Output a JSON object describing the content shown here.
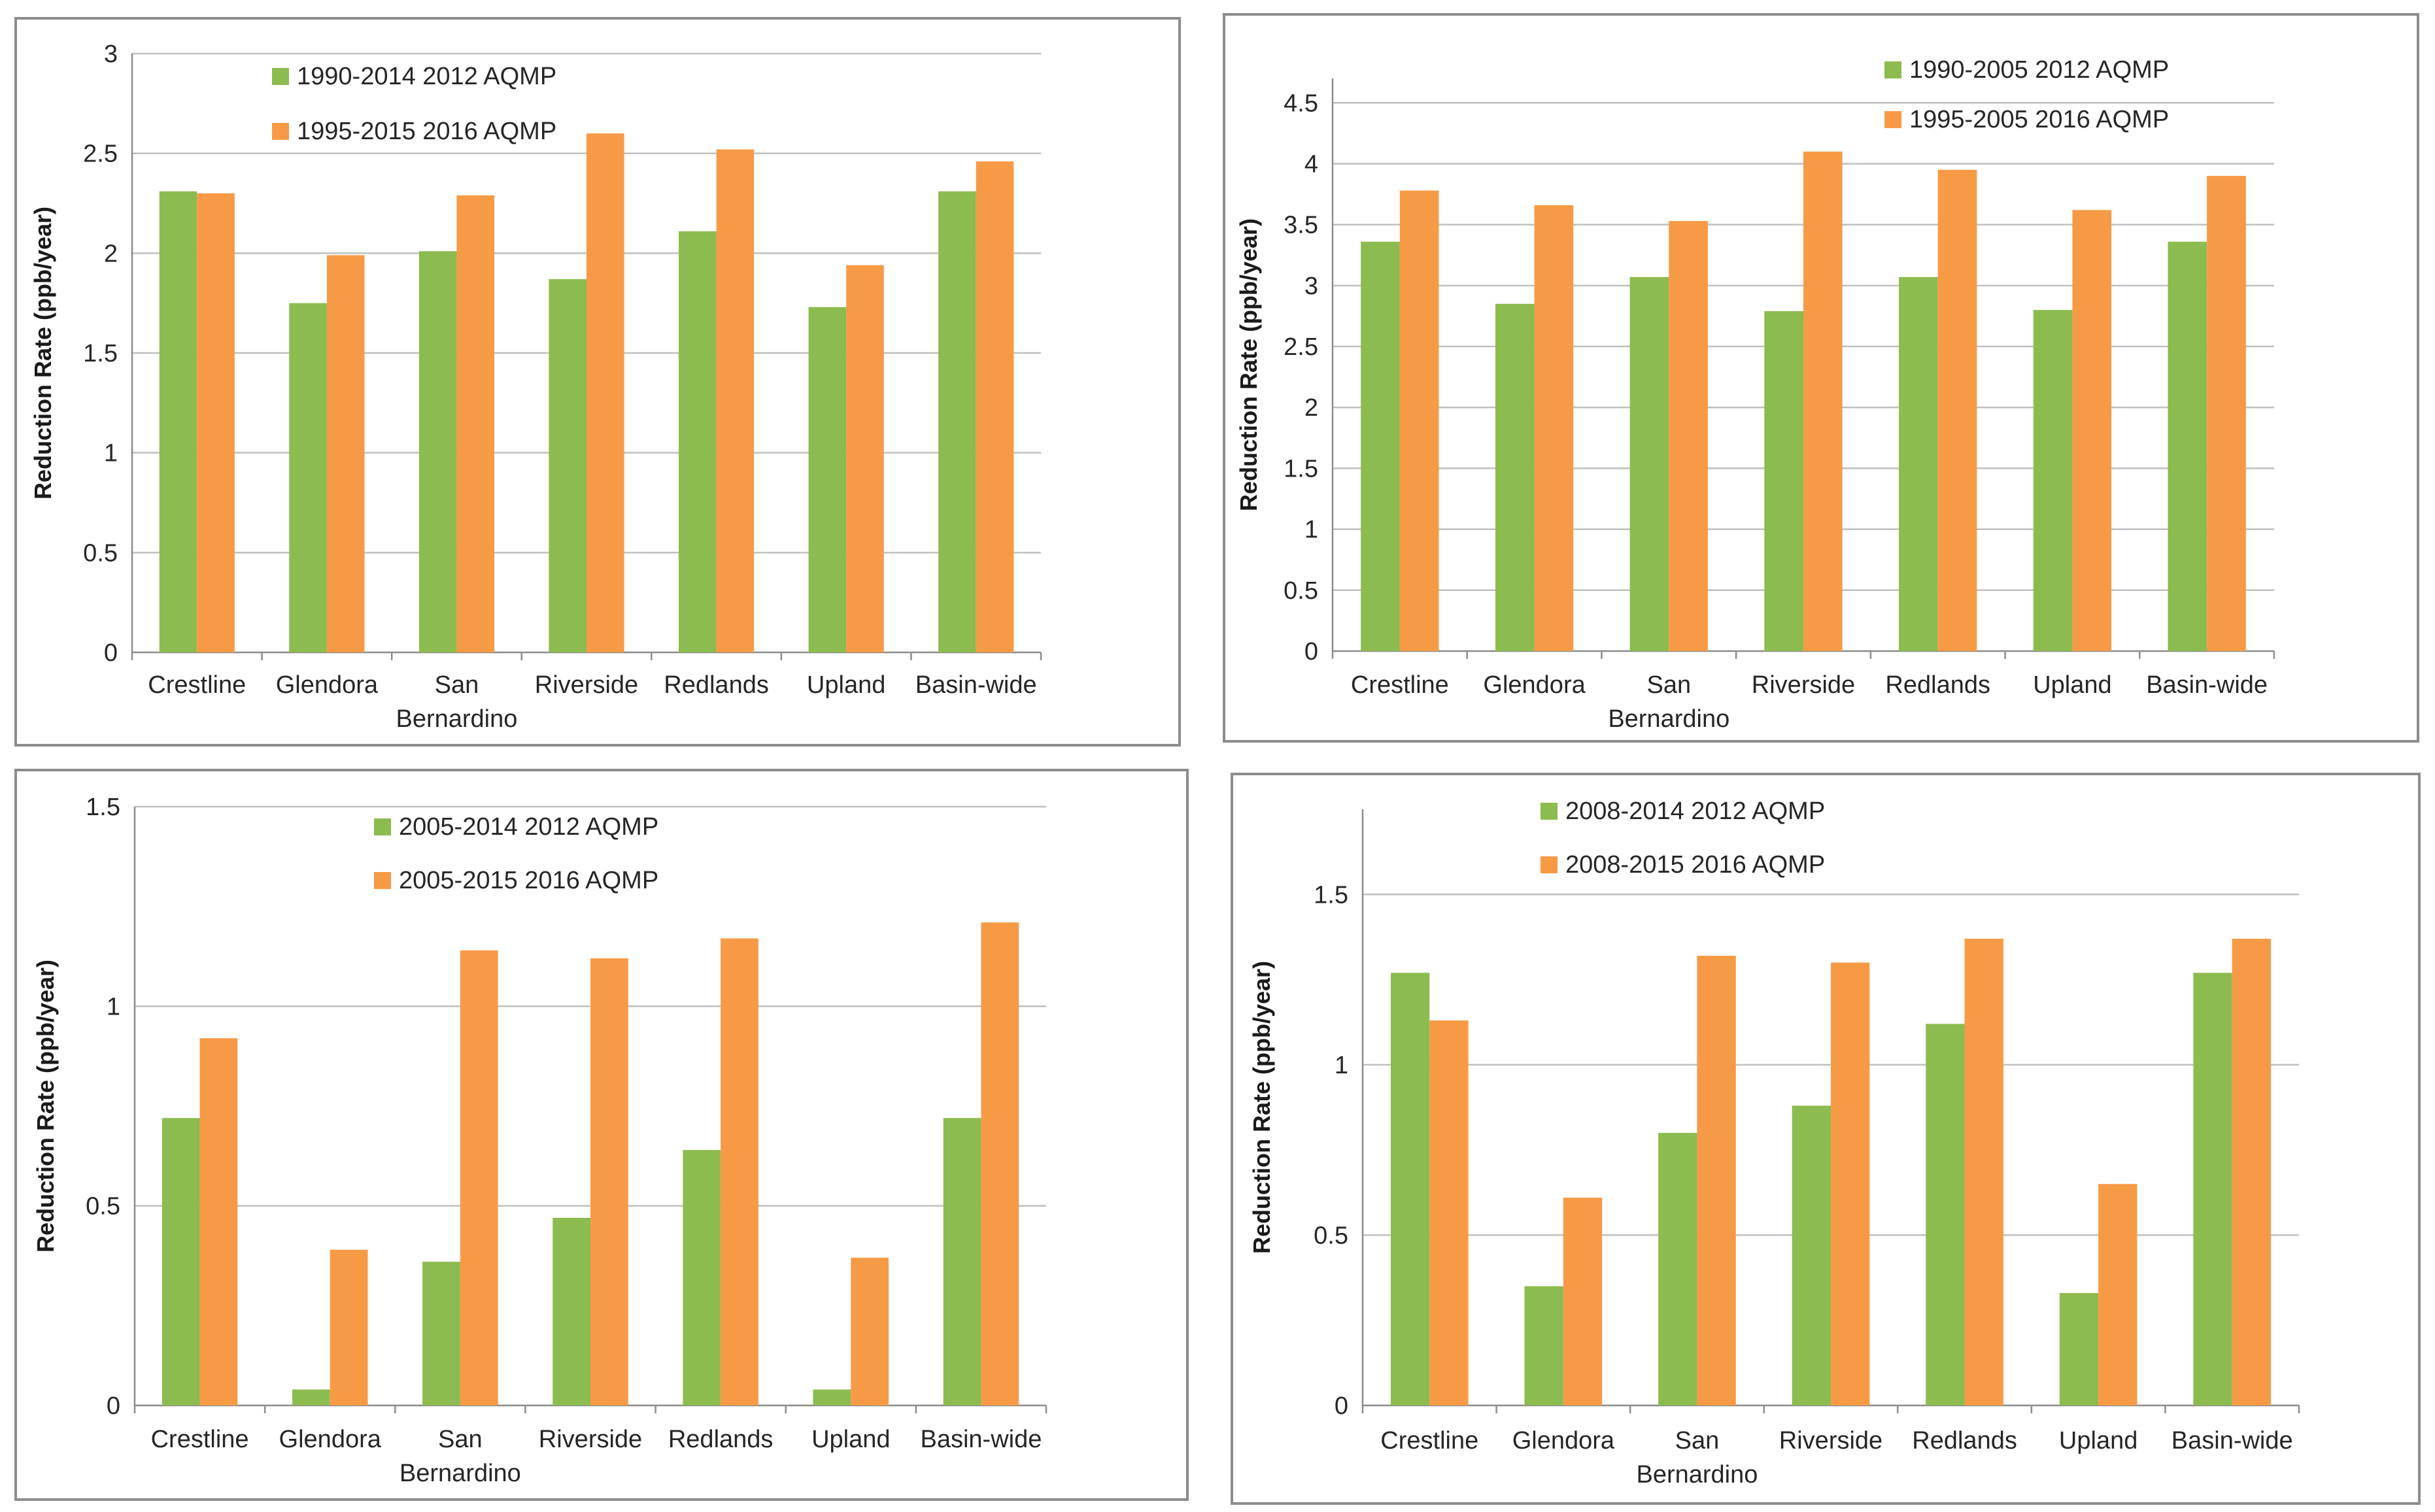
{
  "colors": {
    "series_2012": "#8cbb4f",
    "series_2016": "#f79a46",
    "gridline": "#bfbfbf",
    "axis": "#8c8c8c"
  },
  "chart_data": [
    {
      "type": "bar",
      "ylabel": "Reduction Rate (ppb/year)",
      "ylim": [
        0,
        3
      ],
      "yticks": [
        "0",
        "0.5",
        "1",
        "1.5",
        "2",
        "2.5",
        "3"
      ],
      "yticks_values": [
        0,
        0.5,
        1,
        1.5,
        2,
        2.5,
        3
      ],
      "categories": [
        "Crestline",
        "Glendora",
        "San Bernardino",
        "Riverside",
        "Redlands",
        "Upland",
        "Basin-wide"
      ],
      "category_lines": [
        [
          "Crestline"
        ],
        [
          "Glendora"
        ],
        [
          "San",
          "Bernardino"
        ],
        [
          "Riverside"
        ],
        [
          "Redlands"
        ],
        [
          "Upland"
        ],
        [
          "Basin-wide"
        ]
      ],
      "series": [
        {
          "name": "1990-2014 2012 AQMP",
          "values": [
            2.31,
            1.75,
            2.01,
            1.87,
            2.11,
            1.73,
            2.31
          ]
        },
        {
          "name": "1995-2015 2016 AQMP",
          "values": [
            2.3,
            1.99,
            2.29,
            2.6,
            2.52,
            1.94,
            2.46
          ]
        }
      ]
    },
    {
      "type": "bar",
      "ylabel": "Reduction Rate (ppb/year)",
      "ylim": [
        0,
        4.7
      ],
      "yticks": [
        "0",
        "0.5",
        "1",
        "1.5",
        "2",
        "2.5",
        "3",
        "3.5",
        "4",
        "4.5"
      ],
      "yticks_values": [
        0,
        0.5,
        1,
        1.5,
        2,
        2.5,
        3,
        3.5,
        4,
        4.5
      ],
      "categories": [
        "Crestline",
        "Glendora",
        "San Bernardino",
        "Riverside",
        "Redlands",
        "Upland",
        "Basin-wide"
      ],
      "category_lines": [
        [
          "Crestline"
        ],
        [
          "Glendora"
        ],
        [
          "San",
          "Bernardino"
        ],
        [
          "Riverside"
        ],
        [
          "Redlands"
        ],
        [
          "Upland"
        ],
        [
          "Basin-wide"
        ]
      ],
      "series": [
        {
          "name": "1990-2005 2012 AQMP",
          "values": [
            3.36,
            2.85,
            3.07,
            2.79,
            3.07,
            2.8,
            3.36
          ]
        },
        {
          "name": "1995-2005 2016 AQMP",
          "values": [
            3.78,
            3.66,
            3.53,
            4.1,
            3.95,
            3.62,
            3.9
          ]
        }
      ]
    },
    {
      "type": "bar",
      "ylabel": "Reduction Rate (ppb/year)",
      "ylim": [
        0,
        1.5
      ],
      "yticks": [
        "0",
        "0.5",
        "1",
        "1.5"
      ],
      "yticks_values": [
        0,
        0.5,
        1,
        1.5
      ],
      "categories": [
        "Crestline",
        "Glendora",
        "San Bernardino",
        "Riverside",
        "Redlands",
        "Upland",
        "Basin-wide"
      ],
      "category_lines": [
        [
          "Crestline"
        ],
        [
          "Glendora"
        ],
        [
          "San",
          "Bernardino"
        ],
        [
          "Riverside"
        ],
        [
          "Redlands"
        ],
        [
          "Upland"
        ],
        [
          "Basin-wide"
        ]
      ],
      "series": [
        {
          "name": "2005-2014 2012 AQMP",
          "values": [
            0.72,
            0.04,
            0.36,
            0.47,
            0.64,
            0.04,
            0.72
          ]
        },
        {
          "name": "2005-2015 2016 AQMP",
          "values": [
            0.92,
            0.39,
            1.14,
            1.12,
            1.17,
            0.37,
            1.21
          ]
        }
      ]
    },
    {
      "type": "bar",
      "ylabel": "Reduction Rate (ppb/year)",
      "ylim": [
        0,
        1.75
      ],
      "yticks": [
        "0",
        "0.5",
        "1",
        "1.5"
      ],
      "yticks_values": [
        0,
        0.5,
        1,
        1.5
      ],
      "categories": [
        "Crestline",
        "Glendora",
        "San Bernardino",
        "Riverside",
        "Redlands",
        "Upland",
        "Basin-wide"
      ],
      "category_lines": [
        [
          "Crestline"
        ],
        [
          "Glendora"
        ],
        [
          "San",
          "Bernardino"
        ],
        [
          "Riverside"
        ],
        [
          "Redlands"
        ],
        [
          "Upland"
        ],
        [
          "Basin-wide"
        ]
      ],
      "series": [
        {
          "name": "2008-2014 2012 AQMP",
          "values": [
            1.27,
            0.35,
            0.8,
            0.88,
            1.12,
            0.33,
            1.27
          ]
        },
        {
          "name": "2008-2015 2016 AQMP",
          "values": [
            1.13,
            0.61,
            1.32,
            1.3,
            1.37,
            0.65,
            1.37
          ]
        }
      ]
    }
  ]
}
